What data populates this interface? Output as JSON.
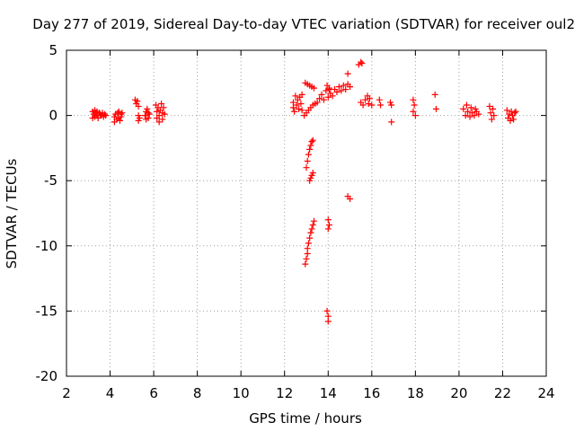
{
  "chart_data": {
    "type": "scatter",
    "title": "Day 277 of 2019, Sidereal Day-to-day VTEC variation (SDTVAR) for receiver oul2",
    "xlabel": "GPS time / hours",
    "ylabel": "SDTVAR / TECUs",
    "xlim": [
      2,
      24
    ],
    "ylim": [
      -20,
      5
    ],
    "x_ticks": [
      2,
      4,
      6,
      8,
      10,
      12,
      14,
      16,
      18,
      20,
      22,
      24
    ],
    "y_ticks": [
      -20,
      -15,
      -10,
      -5,
      0,
      5
    ],
    "grid": true,
    "marker": "+",
    "marker_color": "#ff0000",
    "series": [
      {
        "name": "SDTVAR",
        "points": [
          [
            3.2,
            0.3
          ],
          [
            3.2,
            -0.2
          ],
          [
            3.25,
            0.1
          ],
          [
            3.3,
            0.4
          ],
          [
            3.3,
            -0.1
          ],
          [
            3.35,
            0.2
          ],
          [
            3.4,
            0.0
          ],
          [
            3.4,
            0.3
          ],
          [
            3.45,
            -0.2
          ],
          [
            3.5,
            0.2
          ],
          [
            3.55,
            0.1
          ],
          [
            3.6,
            0.0
          ],
          [
            3.65,
            0.2
          ],
          [
            3.7,
            -0.1
          ],
          [
            3.75,
            0.1
          ],
          [
            3.8,
            0.0
          ],
          [
            4.2,
            -0.1
          ],
          [
            4.2,
            -0.5
          ],
          [
            4.25,
            0.1
          ],
          [
            4.3,
            -0.3
          ],
          [
            4.35,
            0.2
          ],
          [
            4.4,
            -0.2
          ],
          [
            4.4,
            0.3
          ],
          [
            4.45,
            -0.4
          ],
          [
            4.5,
            0.1
          ],
          [
            4.5,
            -0.1
          ],
          [
            4.55,
            0.2
          ],
          [
            5.15,
            1.2
          ],
          [
            5.2,
            0.9
          ],
          [
            5.25,
            1.1
          ],
          [
            5.3,
            0.7
          ],
          [
            5.3,
            0.0
          ],
          [
            5.35,
            -0.2
          ],
          [
            5.3,
            -0.4
          ],
          [
            5.6,
            0.0
          ],
          [
            5.65,
            0.3
          ],
          [
            5.65,
            -0.3
          ],
          [
            5.7,
            0.5
          ],
          [
            5.75,
            0.2
          ],
          [
            5.75,
            -0.2
          ],
          [
            5.8,
            0.1
          ],
          [
            6.1,
            0.8
          ],
          [
            6.15,
            0.3
          ],
          [
            6.15,
            -0.2
          ],
          [
            6.2,
            0.6
          ],
          [
            6.25,
            0.0
          ],
          [
            6.25,
            -0.5
          ],
          [
            6.3,
            0.4
          ],
          [
            6.35,
            0.9
          ],
          [
            6.4,
            0.2
          ],
          [
            6.4,
            -0.3
          ],
          [
            6.45,
            0.6
          ],
          [
            6.5,
            0.1
          ],
          [
            12.4,
            0.6
          ],
          [
            12.4,
            1.0
          ],
          [
            12.45,
            0.3
          ],
          [
            12.5,
            1.5
          ],
          [
            12.55,
            0.8
          ],
          [
            12.6,
            1.2
          ],
          [
            12.65,
            0.5
          ],
          [
            12.7,
            1.4
          ],
          [
            12.75,
            0.9
          ],
          [
            12.8,
            1.6
          ],
          [
            12.8,
            0.4
          ],
          [
            12.9,
            0.0
          ],
          [
            13.0,
            0.2
          ],
          [
            13.1,
            0.4
          ],
          [
            13.2,
            0.6
          ],
          [
            13.3,
            0.8
          ],
          [
            13.4,
            0.9
          ],
          [
            12.95,
            2.5
          ],
          [
            13.05,
            2.4
          ],
          [
            13.15,
            2.3
          ],
          [
            13.25,
            2.2
          ],
          [
            13.35,
            2.1
          ],
          [
            13.0,
            -4.0
          ],
          [
            13.05,
            -3.5
          ],
          [
            13.1,
            -3.0
          ],
          [
            13.15,
            -2.6
          ],
          [
            13.2,
            -2.3
          ],
          [
            13.25,
            -2.0
          ],
          [
            13.3,
            -1.9
          ],
          [
            13.15,
            -5.0
          ],
          [
            13.2,
            -4.8
          ],
          [
            13.25,
            -4.6
          ],
          [
            13.3,
            -4.4
          ],
          [
            12.95,
            -11.4
          ],
          [
            13.0,
            -11.0
          ],
          [
            13.05,
            -10.6
          ],
          [
            13.05,
            -10.2
          ],
          [
            13.1,
            -9.8
          ],
          [
            13.15,
            -9.4
          ],
          [
            13.2,
            -9.0
          ],
          [
            13.25,
            -8.7
          ],
          [
            13.3,
            -8.4
          ],
          [
            13.35,
            -8.1
          ],
          [
            13.5,
            1.0
          ],
          [
            13.6,
            1.3
          ],
          [
            13.7,
            1.6
          ],
          [
            13.8,
            1.2
          ],
          [
            13.9,
            1.9
          ],
          [
            14.0,
            1.4
          ],
          [
            14.05,
            2.0
          ],
          [
            14.1,
            1.7
          ],
          [
            13.95,
            2.3
          ],
          [
            14.05,
            2.1
          ],
          [
            14.0,
            -8.0
          ],
          [
            14.05,
            -8.4
          ],
          [
            14.0,
            -8.7
          ],
          [
            13.95,
            -15.0
          ],
          [
            14.0,
            -15.4
          ],
          [
            14.0,
            -15.8
          ],
          [
            14.2,
            1.5
          ],
          [
            14.3,
            2.0
          ],
          [
            14.4,
            1.8
          ],
          [
            14.5,
            2.2
          ],
          [
            14.6,
            1.9
          ],
          [
            14.7,
            2.3
          ],
          [
            14.8,
            2.0
          ],
          [
            14.9,
            2.4
          ],
          [
            15.0,
            2.2
          ],
          [
            14.9,
            3.2
          ],
          [
            15.4,
            3.9
          ],
          [
            15.5,
            4.1
          ],
          [
            15.55,
            4.0
          ],
          [
            14.9,
            -6.2
          ],
          [
            15.0,
            -6.4
          ],
          [
            15.5,
            1.0
          ],
          [
            15.6,
            0.8
          ],
          [
            15.7,
            1.2
          ],
          [
            15.8,
            1.5
          ],
          [
            15.85,
            0.9
          ],
          [
            15.9,
            1.3
          ],
          [
            16.0,
            0.8
          ],
          [
            16.35,
            1.2
          ],
          [
            16.4,
            0.8
          ],
          [
            16.85,
            1.0
          ],
          [
            16.9,
            0.8
          ],
          [
            16.9,
            -0.5
          ],
          [
            17.9,
            1.2
          ],
          [
            17.95,
            0.8
          ],
          [
            17.9,
            0.3
          ],
          [
            18.0,
            0.0
          ],
          [
            18.9,
            1.6
          ],
          [
            18.95,
            0.5
          ],
          [
            20.2,
            0.5
          ],
          [
            20.3,
            0.0
          ],
          [
            20.35,
            0.8
          ],
          [
            20.4,
            0.3
          ],
          [
            20.5,
            -0.1
          ],
          [
            20.55,
            0.6
          ],
          [
            20.6,
            0.2
          ],
          [
            20.7,
            0.0
          ],
          [
            20.75,
            0.5
          ],
          [
            20.8,
            0.3
          ],
          [
            20.9,
            0.1
          ],
          [
            21.4,
            0.7
          ],
          [
            21.45,
            0.2
          ],
          [
            21.5,
            -0.3
          ],
          [
            21.55,
            0.5
          ],
          [
            21.6,
            0.0
          ],
          [
            22.2,
            0.4
          ],
          [
            22.25,
            -0.2
          ],
          [
            22.3,
            0.1
          ],
          [
            22.35,
            -0.4
          ],
          [
            22.4,
            0.3
          ],
          [
            22.45,
            0.0
          ],
          [
            22.5,
            -0.3
          ],
          [
            22.55,
            0.2
          ],
          [
            22.6,
            0.3
          ]
        ]
      }
    ]
  }
}
